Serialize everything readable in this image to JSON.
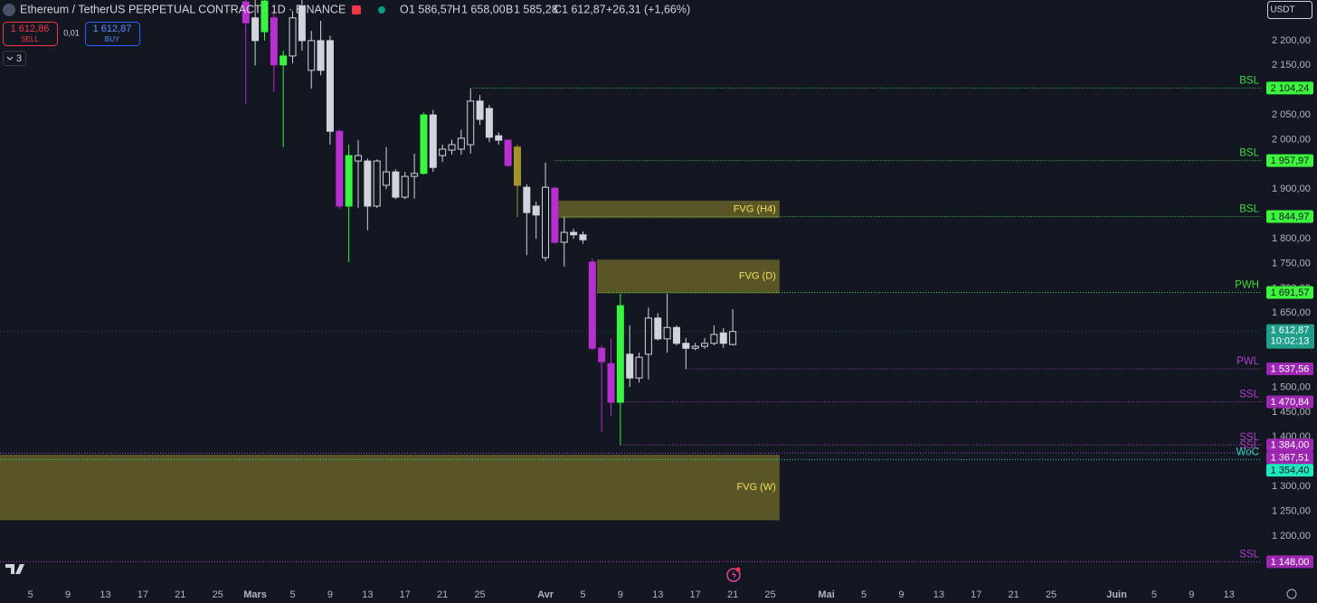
{
  "header": {
    "symbol": "Ethereum / TetherUS PERPETUAL CONTRACT · 1D · BINANCE",
    "o_label": "O",
    "o": "1 586,57",
    "h_label": "H",
    "h": "1 658,00",
    "l_label": "B",
    "l": "1 585,28",
    "c_label": "C",
    "c": "1 612,87",
    "change": "+26,31 (+1,66%)"
  },
  "trade": {
    "sell_price": "1 612,86",
    "sell": "SELL",
    "qty": "0,01",
    "buy_price": "1 612,87",
    "buy": "BUY",
    "count": "3",
    "currency": "USDT"
  },
  "chart_data": {
    "type": "candlestick",
    "xlim": [
      -27.25,
      107.5
    ],
    "ylim": [
      1105,
      2282
    ],
    "grid": false,
    "hollow_color": "#d1d4dc",
    "xticks": [
      {
        "value": -24,
        "label": "5"
      },
      {
        "value": -20,
        "label": "9"
      },
      {
        "value": -16,
        "label": "13"
      },
      {
        "value": -12,
        "label": "17"
      },
      {
        "value": -8,
        "label": "21"
      },
      {
        "value": -4,
        "label": "25"
      },
      {
        "value": 0,
        "label": "Mars"
      },
      {
        "value": 4,
        "label": "5"
      },
      {
        "value": 8,
        "label": "9"
      },
      {
        "value": 12,
        "label": "13"
      },
      {
        "value": 16,
        "label": "17"
      },
      {
        "value": 20,
        "label": "21"
      },
      {
        "value": 24,
        "label": "25"
      },
      {
        "value": 31,
        "label": "Avr"
      },
      {
        "value": 35,
        "label": "5"
      },
      {
        "value": 39,
        "label": "9"
      },
      {
        "value": 43,
        "label": "13"
      },
      {
        "value": 47,
        "label": "17"
      },
      {
        "value": 51,
        "label": "21"
      },
      {
        "value": 55,
        "label": "25"
      },
      {
        "value": 61,
        "label": "Mai"
      },
      {
        "value": 65,
        "label": "5"
      },
      {
        "value": 69,
        "label": "9"
      },
      {
        "value": 73,
        "label": "13"
      },
      {
        "value": 77,
        "label": "17"
      },
      {
        "value": 81,
        "label": "21"
      },
      {
        "value": 85,
        "label": "25"
      },
      {
        "value": 92,
        "label": "Juin"
      },
      {
        "value": 96,
        "label": "5"
      },
      {
        "value": 100,
        "label": "9"
      },
      {
        "value": 104,
        "label": "13"
      }
    ],
    "yticks": [
      {
        "value": 2200,
        "label": "2 200,00"
      },
      {
        "value": 2150,
        "label": "2 150,00"
      },
      {
        "value": 2050,
        "label": "2 050,00"
      },
      {
        "value": 2000,
        "label": "2 000,00"
      },
      {
        "value": 1900,
        "label": "1 900,00"
      },
      {
        "value": 1800,
        "label": "1 800,00"
      },
      {
        "value": 1750,
        "label": "1 750,00"
      },
      {
        "value": 1700,
        "label": "1 700,00"
      },
      {
        "value": 1650,
        "label": "1 650,00"
      },
      {
        "value": 1500,
        "label": "1 500,00"
      },
      {
        "value": 1450,
        "label": "1 450,00"
      },
      {
        "value": 1400,
        "label": "1 400,00"
      },
      {
        "value": 1300,
        "label": "1 300,00"
      },
      {
        "value": 1250,
        "label": "1 250,00"
      },
      {
        "value": 1200,
        "label": "1 200,00"
      }
    ],
    "candles": {
      "x": [
        -1,
        0,
        1,
        2,
        3,
        4,
        5,
        6,
        7,
        8,
        9,
        10,
        11,
        12,
        13,
        14,
        15,
        16,
        17,
        18,
        19,
        20,
        21,
        22,
        23,
        24,
        25,
        26,
        27,
        28,
        29,
        30,
        31,
        32,
        33,
        34,
        35,
        36,
        37,
        38,
        39,
        40,
        41,
        42,
        43,
        44,
        45,
        46,
        47,
        48,
        49,
        50,
        51
      ],
      "open": [
        2278,
        2246,
        2218,
        2246,
        2151,
        2169,
        2270,
        2140,
        2200,
        2200,
        2017,
        1866,
        1957,
        1957,
        1866,
        1908,
        1935,
        1884,
        1926,
        1932,
        2050,
        1968,
        1979,
        1981,
        1990,
        2078,
        2063,
        2008,
        1999,
        1985,
        1904,
        1866,
        1762,
        1902,
        1793,
        1813,
        1808,
        1753,
        1579,
        1548,
        1470,
        1567,
        1519,
        1567,
        1640,
        1598,
        1621,
        1589,
        1579,
        1583,
        1589,
        1610,
        1586.57
      ],
      "high": [
        2282,
        2282,
        2282,
        2260,
        2180,
        2260,
        2282,
        2220,
        2240,
        2210,
        2020,
        1990,
        1999,
        1962,
        1960,
        1985,
        1940,
        1935,
        1972,
        2055,
        2060,
        1990,
        2000,
        2020,
        2103,
        2090,
        2070,
        2015,
        2000,
        1990,
        1910,
        1875,
        1954,
        1905,
        1844,
        1820,
        1815,
        1760,
        1585,
        1598,
        1689,
        1625,
        1570,
        1661,
        1650,
        1689,
        1625,
        1600,
        1590,
        1600,
        1625,
        1620,
        1658
      ],
      "low": [
        2072,
        2150,
        2200,
        2096,
        1985,
        2154,
        2180,
        2103,
        2130,
        1990,
        1860,
        1753,
        1862,
        1817,
        1862,
        1900,
        1880,
        1880,
        1881,
        1930,
        1935,
        1955,
        1970,
        1970,
        1972,
        2030,
        1995,
        1990,
        1945,
        1844,
        1767,
        1800,
        1755,
        1790,
        1744,
        1800,
        1790,
        1575,
        1410,
        1443,
        1384,
        1501,
        1510,
        1516,
        1595,
        1570,
        1585,
        1537,
        1575,
        1578,
        1585,
        1580,
        1585.28
      ],
      "close": [
        2236,
        2200,
        2280,
        2151,
        2169,
        2246,
        2200,
        2200,
        2140,
        2017,
        1866,
        1968,
        1968,
        1866,
        1957,
        1935,
        1884,
        1926,
        1932,
        2050,
        1944,
        1981,
        1990,
        2003,
        2078,
        2041,
        2005,
        1999,
        1948,
        1908,
        1853,
        1848,
        1904,
        1793,
        1813,
        1808,
        1798,
        1579,
        1552,
        1470,
        1665,
        1519,
        1561,
        1640,
        1598,
        1621,
        1589,
        1579,
        1583,
        1589,
        1607,
        1589,
        1612.87
      ],
      "colors": [
        "#b82fcf",
        "#d1d4dc",
        "#39f542",
        "#b82fcf",
        "#39f542",
        "#d1d4dc",
        "#d1d4dc",
        "#d1d4dc",
        "#d1d4dc",
        "#d1d4dc",
        "#b82fcf",
        "#39f542",
        "#d1d4dc",
        "#d1d4dc",
        "#d1d4dc",
        "#d1d4dc",
        "#d1d4dc",
        "#d1d4dc",
        "#d1d4dc",
        "#39f542",
        "#d1d4dc",
        "#d1d4dc",
        "#d1d4dc",
        "#d1d4dc",
        "#d1d4dc",
        "#d1d4dc",
        "#d1d4dc",
        "#d1d4dc",
        "#b82fcf",
        "#a3942f",
        "#d1d4dc",
        "#d1d4dc",
        "#d1d4dc",
        "#b82fcf",
        "#d1d4dc",
        "#d1d4dc",
        "#d1d4dc",
        "#b82fcf",
        "#b82fcf",
        "#b82fcf",
        "#39f542",
        "#d1d4dc",
        "#d1d4dc",
        "#d1d4dc",
        "#d1d4dc",
        "#d1d4dc",
        "#d1d4dc",
        "#d1d4dc",
        "#d1d4dc",
        "#d1d4dc",
        "#d1d4dc",
        "#d1d4dc",
        "#d1d4dc"
      ]
    },
    "zones": [
      {
        "name": "FVG (H4)",
        "top": 1877,
        "bottom": 1842,
        "from": 32.4,
        "to": 56
      },
      {
        "name": "FVG (D)",
        "top": 1758,
        "bottom": 1690,
        "from": 36.5,
        "to": 56
      },
      {
        "name": "FVG (W)",
        "top": 1364,
        "bottom": 1232,
        "from": -27.25,
        "to": 56
      }
    ],
    "zone_color": "#8a7f2c",
    "zone_text_color": "#f2e05a",
    "levels": [
      {
        "name": "BSL",
        "value": 2104.24,
        "label": "2 104,24",
        "from": 23,
        "color": "#3ddc3d",
        "box": "#3cf53c",
        "box_text": "#131722"
      },
      {
        "name": "BSL",
        "value": 1957.97,
        "label": "1 957,97",
        "from": 32,
        "color": "#3ddc3d",
        "box": "#3cf53c",
        "box_text": "#131722"
      },
      {
        "name": "BSL",
        "value": 1844.97,
        "label": "1 844,97",
        "from": 32.7,
        "color": "#3ddc3d",
        "box": "#3cf53c",
        "box_text": "#131722"
      },
      {
        "name": "PWH",
        "value": 1691.57,
        "label": "1 691,57",
        "from": 36.5,
        "color": "#3ddc3d",
        "box": "#3cf53c",
        "box_text": "#131722"
      },
      {
        "name": "PWL",
        "value": 1537.56,
        "label": "1 537,56",
        "from": 46,
        "color": "#b13fc9",
        "box": "#9c27b0",
        "box_text": "#ffffff"
      },
      {
        "name": "SSL",
        "value": 1470.84,
        "label": "1 470,84",
        "from": 39,
        "color": "#b13fc9",
        "box": "#9c27b0",
        "box_text": "#ffffff"
      },
      {
        "name": "SSL",
        "value": 1384.0,
        "label": "1 384,00",
        "from": 39,
        "color": "#b13fc9",
        "box": "#9c27b0",
        "box_text": "#ffffff"
      },
      {
        "name": "SSL",
        "value": 1367.51,
        "label": "1 367,51",
        "from": -27.25,
        "color": "#b13fc9",
        "box": "#9c27b0",
        "box_text": "#ffffff"
      },
      {
        "name": "WoC",
        "value": 1354.4,
        "label": "1 354,40",
        "from": -27.25,
        "color": "#2ad1b0",
        "box": "#1ee8be",
        "box_text": "#131722"
      },
      {
        "name": "SSL",
        "value": 1148.0,
        "label": "1 148,00",
        "from": -27.25,
        "color": "#b13fc9",
        "box": "#9c27b0",
        "box_text": "#ffffff"
      }
    ],
    "last_price": {
      "value": 1612.87,
      "label": "1 612,87",
      "countdown": "10:02:13",
      "color": "#1f9e8a"
    }
  }
}
